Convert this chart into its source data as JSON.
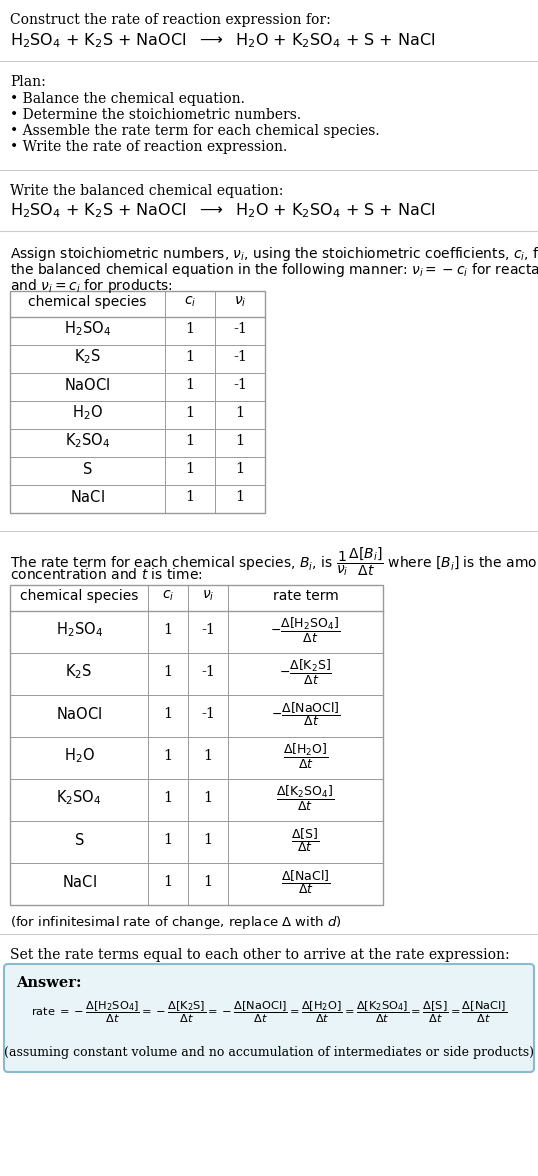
{
  "title_line1": "Construct the rate of reaction expression for:",
  "plan_header": "Plan:",
  "plan_items": [
    "• Balance the chemical equation.",
    "• Determine the stoichiometric numbers.",
    "• Assemble the rate term for each chemical species.",
    "• Write the rate of reaction expression."
  ],
  "balanced_label": "Write the balanced chemical equation:",
  "table1_headers": [
    "chemical species",
    "c_i",
    "v_i"
  ],
  "table1_data": [
    [
      "H_2SO_4",
      "1",
      "-1"
    ],
    [
      "K_2S",
      "1",
      "-1"
    ],
    [
      "NaOCl",
      "1",
      "-1"
    ],
    [
      "H_2O",
      "1",
      "1"
    ],
    [
      "K_2SO_4",
      "1",
      "1"
    ],
    [
      "S",
      "1",
      "1"
    ],
    [
      "NaCl",
      "1",
      "1"
    ]
  ],
  "table2_headers": [
    "chemical species",
    "c_i",
    "v_i",
    "rate term"
  ],
  "table2_data": [
    [
      "H_2SO_4",
      "1",
      "-1",
      "neg_H2SO4"
    ],
    [
      "K_2S",
      "1",
      "-1",
      "neg_K2S"
    ],
    [
      "NaOCl",
      "1",
      "-1",
      "neg_NaOCl"
    ],
    [
      "H_2O",
      "1",
      "1",
      "pos_H2O"
    ],
    [
      "K_2SO_4",
      "1",
      "1",
      "pos_K2SO4"
    ],
    [
      "S",
      "1",
      "1",
      "pos_S"
    ],
    [
      "NaCl",
      "1",
      "1",
      "pos_NaCl"
    ]
  ],
  "answer_box_color": "#e8f4f8",
  "answer_box_border": "#88bbcc",
  "bg_color": "#ffffff"
}
